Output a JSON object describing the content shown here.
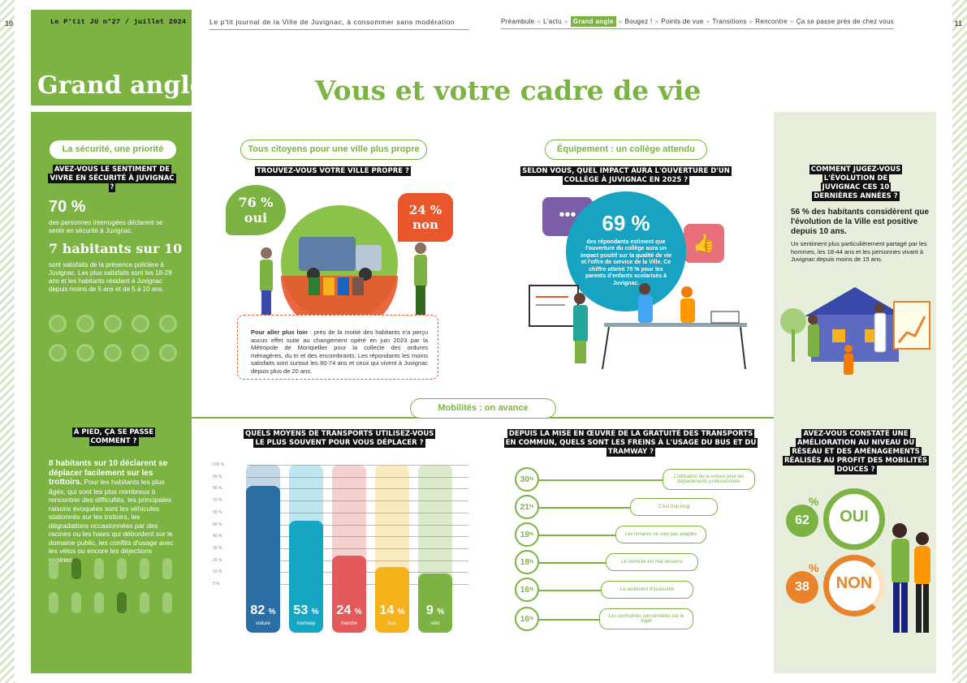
{
  "page": {
    "left_number": "10",
    "right_number": "11",
    "issue": "Le P'tit JU n°27 / juillet 2024",
    "journal": "Le p'tit journal de la Ville de Juvignac, à consommer sans modération",
    "nav": [
      "Préambule",
      "L'actu",
      "Grand angle",
      "Bougez !",
      "Points de vue",
      "Transitions",
      "Rencontre",
      "Ça se passe près de chez vous"
    ],
    "nav_active": "Grand angle",
    "section": "Grand angle",
    "title": "Vous et votre cadre de vie"
  },
  "securite": {
    "pill": "La sécurité, une priorité",
    "question": "Avez-vous le sentiment de vivre en sécurité à Juvignac ?",
    "stat1_value": "70 %",
    "stat1_text": "des personnes interrogées déclarent se sentir en sécurité à Juvignac.",
    "stat2_value": "7 habitants sur 10",
    "stat2_text": "sont satisfaits de la présence policière à Juvignac. Les plus satisfaits sont les 18-29 ans et les habitants résidant à Juvignac depuis moins de 5 ans et de 5 à 10 ans."
  },
  "proprete": {
    "pill": "Tous citoyens pour une ville plus propre",
    "question": "Trouvez-vous votre ville propre ?",
    "oui_value": "76 %",
    "oui_label": "oui",
    "non_value": "24 %",
    "non_label": "non",
    "detail_lead": "Pour aller plus loin",
    "detail_text": " : près de la moitié des habitants n'a perçu aucun effet suite au changement opéré en juin 2023 par la Métropole de Montpellier pour la collecte des ordures ménagères, du tri et des encombrants. Les répondants les moins satisfaits sont surtout les 60-74 ans et ceux qui vivent à Juvignac depuis plus de 20 ans."
  },
  "college": {
    "pill": "Équipement : un collège attendu",
    "question": "Selon vous, quel impact aura l'ouverture d'un collège à Juvignac en 2025 ?",
    "value": "69 %",
    "text": "des répondants estiment que l'ouverture du collège aura un impact positif sur la qualité de vie et l'offre de service de la Ville. Ce chiffre atteint 75 % pour les parents d'enfants scolarisés à Juvignac."
  },
  "evolution": {
    "question": "Comment jugez-vous l'évolution de Juvignac ces 10 dernières années ?",
    "lead": "56 % des habitants considèrent que l'évolution de la Ville est positive depuis 10 ans.",
    "text": "Un sentiment plus particulièrement partagé par les hommes, les 18-44 ans et les personnes vivant à Juvignac depuis moins de 15 ans."
  },
  "mobilites": {
    "pill": "Mobilités : on avance",
    "pied_question": "À pied, ça se passe comment ?",
    "pied_lead": "8 habitants sur 10 déclarent se déplacer facilement sur les trottoirs.",
    "pied_text": " Pour les habitants les plus âgés, qui sont les plus nombreux à rencontrer des difficultés, les principales raisons évoquées sont les véhicules stationnés sur les trottoirs, les dégradations occasionnées par des racines ou les haies qui débordent sur le domaine public, les conflits d'usage avec les vélos ou encore les déjections canines.",
    "transport_question": "Quels moyens de transports utilisez-vous le plus souvent pour vous déplacer ?",
    "freins_question": "Depuis la mise en œuvre de la gratuité des transports en commun, quels sont les freins à l'usage du bus et du tramway ?",
    "freins": [
      {
        "value": "30",
        "unit": "%",
        "label": "L'utilisation de la voiture pour les déplacements professionnels"
      },
      {
        "value": "21",
        "unit": "%",
        "label": "C'est trop long"
      },
      {
        "value": "19",
        "unit": "%",
        "label": "Les horaires ne sont pas adaptés"
      },
      {
        "value": "18",
        "unit": "%",
        "label": "Le domicile est mal desservi"
      },
      {
        "value": "16",
        "unit": "%",
        "label": "Le sentiment d'insécurité"
      },
      {
        "value": "16",
        "unit": "%",
        "label": "Les contraintes personnelles sur le trajet"
      }
    ],
    "douces_question": "Avez-vous constaté une amélioration au niveau du réseau et des aménagements réalisés au profit des mobilités douces ?",
    "douces": [
      {
        "value": "62",
        "unit": "%",
        "label": "OUI"
      },
      {
        "value": "38",
        "unit": "%",
        "label": "NON"
      }
    ]
  },
  "chart_data": {
    "type": "bar",
    "ticks": [
      "100 %",
      "90 %",
      "80 %",
      "70 %",
      "60 %",
      "50 %",
      "40 %",
      "30 %",
      "20 %",
      "10 %",
      "0 %"
    ],
    "categories": [
      "voiture",
      "tramway",
      "marche",
      "bus",
      "vélo"
    ],
    "values": [
      82,
      53,
      24,
      14,
      9
    ],
    "labels": [
      "82",
      "53",
      "24",
      "14",
      "9"
    ],
    "unit": "%",
    "colors": [
      "#2b6ea6",
      "#15a6c4",
      "#e45a5a",
      "#f5b21b",
      "#7cb342"
    ],
    "ylim": [
      0,
      100
    ]
  },
  "colors": {
    "green": "#7cb342",
    "orange": "#e8842c",
    "teal": "#19a3c3"
  }
}
